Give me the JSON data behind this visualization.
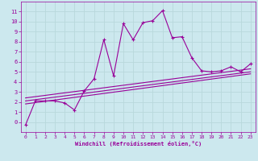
{
  "bg_color": "#cce8ee",
  "line_color": "#990099",
  "grid_color": "#aadddd",
  "xlabel": "Windchill (Refroidissement éolien,°C)",
  "ylim": [
    -1,
    12
  ],
  "xlim": [
    -0.5,
    23.5
  ],
  "yticks": [
    0,
    1,
    2,
    3,
    4,
    5,
    6,
    7,
    8,
    9,
    10,
    11
  ],
  "xticks": [
    0,
    1,
    2,
    3,
    4,
    5,
    6,
    7,
    8,
    9,
    10,
    11,
    12,
    13,
    14,
    15,
    16,
    17,
    18,
    19,
    20,
    21,
    22,
    23
  ],
  "series": [
    [
      0,
      -0.3
    ],
    [
      1,
      2.1
    ],
    [
      2,
      2.1
    ],
    [
      3,
      2.1
    ],
    [
      4,
      1.9
    ],
    [
      5,
      1.2
    ],
    [
      6,
      3.1
    ],
    [
      7,
      4.3
    ],
    [
      8,
      8.2
    ],
    [
      9,
      4.6
    ],
    [
      10,
      9.8
    ],
    [
      11,
      8.2
    ],
    [
      12,
      9.9
    ],
    [
      13,
      10.1
    ],
    [
      14,
      11.1
    ],
    [
      15,
      8.4
    ],
    [
      16,
      8.5
    ],
    [
      17,
      6.4
    ],
    [
      18,
      5.1
    ],
    [
      19,
      5.0
    ],
    [
      20,
      5.1
    ],
    [
      21,
      5.5
    ],
    [
      22,
      5.0
    ],
    [
      23,
      5.8
    ]
  ],
  "linear1": [
    [
      0,
      1.8
    ],
    [
      23,
      4.8
    ]
  ],
  "linear2": [
    [
      0,
      2.1
    ],
    [
      23,
      5.0
    ]
  ],
  "linear3": [
    [
      0,
      2.4
    ],
    [
      23,
      5.3
    ]
  ]
}
